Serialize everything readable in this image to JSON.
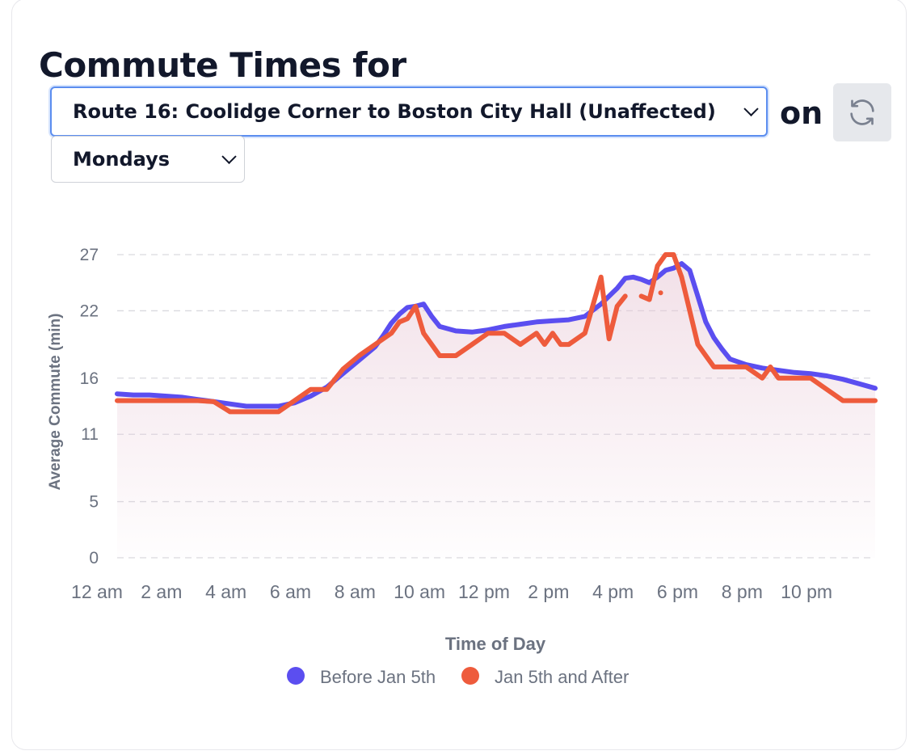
{
  "header": {
    "title": "Commute Times for",
    "route_select": "Route 16: Coolidge Corner to Boston City Hall (Unaffected)",
    "on_label": "on",
    "day_select": "Mondays",
    "refresh_icon": "refresh-icon"
  },
  "colors": {
    "before": "#5b4ef0",
    "after": "#ee5b3c",
    "grid": "#d9d9df",
    "axis_text": "#6b7280"
  },
  "chart_data": {
    "type": "line",
    "title": "",
    "xlabel": "Time of Day",
    "ylabel": "Average Commute (min)",
    "xlim": [
      0,
      23.5
    ],
    "ylim": [
      0,
      27
    ],
    "y_ticks": [
      0,
      5,
      11,
      16,
      22,
      27
    ],
    "x_ticks": [
      {
        "x": 0,
        "label": "12 am"
      },
      {
        "x": 2,
        "label": "2 am"
      },
      {
        "x": 4,
        "label": "4 am"
      },
      {
        "x": 6,
        "label": "6 am"
      },
      {
        "x": 8,
        "label": "8 am"
      },
      {
        "x": 10,
        "label": "10 am"
      },
      {
        "x": 12,
        "label": "12 pm"
      },
      {
        "x": 14,
        "label": "2 pm"
      },
      {
        "x": 16,
        "label": "4 pm"
      },
      {
        "x": 18,
        "label": "6 pm"
      },
      {
        "x": 20,
        "label": "8 pm"
      },
      {
        "x": 22,
        "label": "10 pm"
      }
    ],
    "legend": [
      "Before Jan 5th",
      "Jan 5th and After"
    ],
    "legend_position": "bottom",
    "grid": true,
    "series": [
      {
        "name": "Before Jan 5th",
        "color": "#5b4ef0",
        "x": [
          0,
          0.5,
          1,
          1.5,
          2,
          2.5,
          3,
          3.5,
          4,
          4.5,
          5,
          5.5,
          6,
          6.5,
          7,
          7.5,
          8,
          8.25,
          8.5,
          8.75,
          9,
          9.25,
          9.5,
          9.75,
          10,
          10.5,
          11,
          11.5,
          12,
          12.5,
          13,
          13.5,
          14,
          14.5,
          15,
          15.5,
          15.75,
          16,
          16.25,
          16.5,
          16.75,
          17,
          17.25,
          17.5,
          17.75,
          18,
          18.25,
          18.5,
          18.75,
          19,
          19.5,
          20,
          20.5,
          21,
          21.5,
          22,
          22.5,
          23,
          23.5
        ],
        "y": [
          14.6,
          14.5,
          14.5,
          14.4,
          14.3,
          14.1,
          13.9,
          13.7,
          13.5,
          13.5,
          13.5,
          13.8,
          14.4,
          15.2,
          16.4,
          17.6,
          18.8,
          19.8,
          20.9,
          21.7,
          22.3,
          22.4,
          22.6,
          21.5,
          20.6,
          20.2,
          20.1,
          20.3,
          20.6,
          20.8,
          21.0,
          21.1,
          21.2,
          21.5,
          22.6,
          24.0,
          24.9,
          25.0,
          24.8,
          24.5,
          25.0,
          25.6,
          25.8,
          26.2,
          25.6,
          23.3,
          21.0,
          19.6,
          18.6,
          17.7,
          17.2,
          16.9,
          16.7,
          16.5,
          16.4,
          16.2,
          15.9,
          15.5,
          15.1
        ]
      },
      {
        "name": "Jan 5th and After",
        "color": "#ee5b3c",
        "x": [
          0,
          0.5,
          1,
          1.5,
          2,
          2.5,
          3,
          3.5,
          4,
          4.5,
          5,
          5.5,
          6,
          6.5,
          7,
          7.5,
          8,
          8.5,
          8.75,
          9,
          9.25,
          9.5,
          9.75,
          10,
          10.5,
          11,
          11.5,
          12,
          12.5,
          13,
          13.25,
          13.5,
          13.75,
          14,
          14.5,
          15,
          15.25,
          15.5,
          15.75,
          16,
          16.25,
          16.5,
          16.75,
          17,
          17.25,
          17.5,
          17.75,
          18,
          18.25,
          18.5,
          19,
          19.5,
          20,
          20.25,
          20.5,
          20.75,
          21,
          21.5,
          22,
          22.5,
          23,
          23.5
        ],
        "y": [
          14.0,
          14.0,
          14.0,
          14.0,
          14.0,
          14.0,
          13.9,
          13.0,
          13.0,
          13.0,
          13.0,
          14.0,
          15.0,
          15.0,
          16.8,
          18.0,
          19.0,
          20.0,
          21.0,
          21.3,
          22.4,
          20.0,
          19.0,
          18.0,
          18.0,
          19.0,
          20.0,
          20.0,
          19.0,
          20.0,
          19.0,
          20.0,
          19.0,
          19.0,
          20.0,
          25.0,
          19.5,
          22.4,
          23.3,
          null,
          23.3,
          23.0,
          26.0,
          27.0,
          27.0,
          25.0,
          22.0,
          19.0,
          18.0,
          17.0,
          17.0,
          17.0,
          16.0,
          17.0,
          16.0,
          16.0,
          16.0,
          16.0,
          15.0,
          14.0,
          14.0,
          14.0
        ]
      }
    ]
  }
}
